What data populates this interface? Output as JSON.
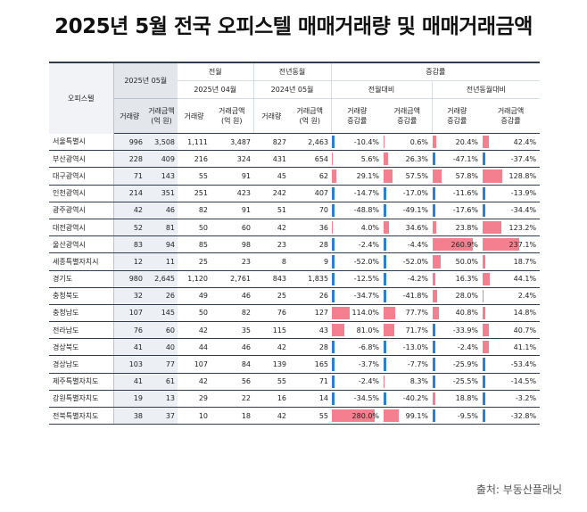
{
  "title": "2025년 5월 전국 오피스텔 매매거래량 및 매매거래금액",
  "source": "출처: 부동산플래닛",
  "header": {
    "row_label": "오피스텔",
    "current_period": "2025년 05월",
    "prev_month_group": "전월",
    "prev_month_period": "2025년 04월",
    "prev_year_group": "전년동월",
    "prev_year_period": "2024년 05월",
    "change_group": "증감률",
    "mom_label": "전월대비",
    "yoy_label": "전년동월대비",
    "col_volume": "거래량",
    "col_amount_1": "거래금액",
    "col_amount_2": "(억 원)",
    "col_vol_rate_1": "거래량",
    "col_vol_rate_2": "증감률",
    "col_amt_rate_1": "거래금액",
    "col_amt_rate_2": "증감률"
  },
  "rows": [
    {
      "region": "서울특별시",
      "vol": "996",
      "amt": "3,508",
      "pm_vol": "1,111",
      "pm_amt": "3,487",
      "py_vol": "827",
      "py_amt": "2,463",
      "mom_vol": "-10.4%",
      "mom_amt": "0.6%",
      "yoy_vol": "20.4%",
      "yoy_amt": "42.4%",
      "mom_vol_v": -10.4,
      "mom_amt_v": 0.6,
      "yoy_vol_v": 20.4,
      "yoy_amt_v": 42.4
    },
    {
      "region": "부산광역시",
      "vol": "228",
      "amt": "409",
      "pm_vol": "216",
      "pm_amt": "324",
      "py_vol": "431",
      "py_amt": "654",
      "mom_vol": "5.6%",
      "mom_amt": "26.3%",
      "yoy_vol": "-47.1%",
      "yoy_amt": "-37.4%",
      "mom_vol_v": 5.6,
      "mom_amt_v": 26.3,
      "yoy_vol_v": -47.1,
      "yoy_amt_v": -37.4
    },
    {
      "region": "대구광역시",
      "vol": "71",
      "amt": "143",
      "pm_vol": "55",
      "pm_amt": "91",
      "py_vol": "45",
      "py_amt": "62",
      "mom_vol": "29.1%",
      "mom_amt": "57.5%",
      "yoy_vol": "57.8%",
      "yoy_amt": "128.8%",
      "mom_vol_v": 29.1,
      "mom_amt_v": 57.5,
      "yoy_vol_v": 57.8,
      "yoy_amt_v": 128.8
    },
    {
      "region": "인천광역시",
      "vol": "214",
      "amt": "351",
      "pm_vol": "251",
      "pm_amt": "423",
      "py_vol": "242",
      "py_amt": "407",
      "mom_vol": "-14.7%",
      "mom_amt": "-17.0%",
      "yoy_vol": "-11.6%",
      "yoy_amt": "-13.9%",
      "mom_vol_v": -14.7,
      "mom_amt_v": -17.0,
      "yoy_vol_v": -11.6,
      "yoy_amt_v": -13.9
    },
    {
      "region": "광주광역시",
      "vol": "42",
      "amt": "46",
      "pm_vol": "82",
      "pm_amt": "91",
      "py_vol": "51",
      "py_amt": "70",
      "mom_vol": "-48.8%",
      "mom_amt": "-49.1%",
      "yoy_vol": "-17.6%",
      "yoy_amt": "-34.4%",
      "mom_vol_v": -48.8,
      "mom_amt_v": -49.1,
      "yoy_vol_v": -17.6,
      "yoy_amt_v": -34.4
    },
    {
      "region": "대전광역시",
      "vol": "52",
      "amt": "81",
      "pm_vol": "50",
      "pm_amt": "60",
      "py_vol": "42",
      "py_amt": "36",
      "mom_vol": "4.0%",
      "mom_amt": "34.6%",
      "yoy_vol": "23.8%",
      "yoy_amt": "123.2%",
      "mom_vol_v": 4.0,
      "mom_amt_v": 34.6,
      "yoy_vol_v": 23.8,
      "yoy_amt_v": 123.2
    },
    {
      "region": "울산광역시",
      "vol": "83",
      "amt": "94",
      "pm_vol": "85",
      "pm_amt": "98",
      "py_vol": "23",
      "py_amt": "28",
      "mom_vol": "-2.4%",
      "mom_amt": "-4.4%",
      "yoy_vol": "260.9%",
      "yoy_amt": "237.1%",
      "mom_vol_v": -2.4,
      "mom_amt_v": -4.4,
      "yoy_vol_v": 260.9,
      "yoy_amt_v": 237.1
    },
    {
      "region": "세종특별자치시",
      "vol": "12",
      "amt": "11",
      "pm_vol": "25",
      "pm_amt": "23",
      "py_vol": "8",
      "py_amt": "9",
      "mom_vol": "-52.0%",
      "mom_amt": "-52.0%",
      "yoy_vol": "50.0%",
      "yoy_amt": "18.7%",
      "mom_vol_v": -52.0,
      "mom_amt_v": -52.0,
      "yoy_vol_v": 50.0,
      "yoy_amt_v": 18.7
    },
    {
      "region": "경기도",
      "vol": "980",
      "amt": "2,645",
      "pm_vol": "1,120",
      "pm_amt": "2,761",
      "py_vol": "843",
      "py_amt": "1,835",
      "mom_vol": "-12.5%",
      "mom_amt": "-4.2%",
      "yoy_vol": "16.3%",
      "yoy_amt": "44.1%",
      "mom_vol_v": -12.5,
      "mom_amt_v": -4.2,
      "yoy_vol_v": 16.3,
      "yoy_amt_v": 44.1
    },
    {
      "region": "충청북도",
      "vol": "32",
      "amt": "26",
      "pm_vol": "49",
      "pm_amt": "46",
      "py_vol": "25",
      "py_amt": "26",
      "mom_vol": "-34.7%",
      "mom_amt": "-41.8%",
      "yoy_vol": "28.0%",
      "yoy_amt": "2.4%",
      "mom_vol_v": -34.7,
      "mom_amt_v": -41.8,
      "yoy_vol_v": 28.0,
      "yoy_amt_v": 2.4
    },
    {
      "region": "충청남도",
      "vol": "107",
      "amt": "145",
      "pm_vol": "50",
      "pm_amt": "82",
      "py_vol": "76",
      "py_amt": "127",
      "mom_vol": "114.0%",
      "mom_amt": "77.7%",
      "yoy_vol": "40.8%",
      "yoy_amt": "14.8%",
      "mom_vol_v": 114.0,
      "mom_amt_v": 77.7,
      "yoy_vol_v": 40.8,
      "yoy_amt_v": 14.8
    },
    {
      "region": "전라남도",
      "vol": "76",
      "amt": "60",
      "pm_vol": "42",
      "pm_amt": "35",
      "py_vol": "115",
      "py_amt": "43",
      "mom_vol": "81.0%",
      "mom_amt": "71.7%",
      "yoy_vol": "-33.9%",
      "yoy_amt": "40.7%",
      "mom_vol_v": 81.0,
      "mom_amt_v": 71.7,
      "yoy_vol_v": -33.9,
      "yoy_amt_v": 40.7
    },
    {
      "region": "경상북도",
      "vol": "41",
      "amt": "40",
      "pm_vol": "44",
      "pm_amt": "46",
      "py_vol": "42",
      "py_amt": "28",
      "mom_vol": "-6.8%",
      "mom_amt": "-13.0%",
      "yoy_vol": "-2.4%",
      "yoy_amt": "41.1%",
      "mom_vol_v": -6.8,
      "mom_amt_v": -13.0,
      "yoy_vol_v": -2.4,
      "yoy_amt_v": 41.1
    },
    {
      "region": "경상남도",
      "vol": "103",
      "amt": "77",
      "pm_vol": "107",
      "pm_amt": "84",
      "py_vol": "139",
      "py_amt": "165",
      "mom_vol": "-3.7%",
      "mom_amt": "-7.7%",
      "yoy_vol": "-25.9%",
      "yoy_amt": "-53.4%",
      "mom_vol_v": -3.7,
      "mom_amt_v": -7.7,
      "yoy_vol_v": -25.9,
      "yoy_amt_v": -53.4
    },
    {
      "region": "제주특별자치도",
      "vol": "41",
      "amt": "61",
      "pm_vol": "42",
      "pm_amt": "56",
      "py_vol": "55",
      "py_amt": "71",
      "mom_vol": "-2.4%",
      "mom_amt": "8.3%",
      "yoy_vol": "-25.5%",
      "yoy_amt": "-14.5%",
      "mom_vol_v": -2.4,
      "mom_amt_v": 8.3,
      "yoy_vol_v": -25.5,
      "yoy_amt_v": -14.5
    },
    {
      "region": "강원특별자치도",
      "vol": "19",
      "amt": "13",
      "pm_vol": "29",
      "pm_amt": "22",
      "py_vol": "16",
      "py_amt": "14",
      "mom_vol": "-34.5%",
      "mom_amt": "-40.2%",
      "yoy_vol": "18.8%",
      "yoy_amt": "-3.2%",
      "mom_vol_v": -34.5,
      "mom_amt_v": -40.2,
      "yoy_vol_v": 18.8,
      "yoy_amt_v": -3.2
    },
    {
      "region": "전북특별자치도",
      "vol": "38",
      "amt": "37",
      "pm_vol": "10",
      "pm_amt": "18",
      "py_vol": "42",
      "py_amt": "55",
      "mom_vol": "280.0%",
      "mom_amt": "99.1%",
      "yoy_vol": "-9.5%",
      "yoy_amt": "-32.8%",
      "mom_vol_v": 280.0,
      "mom_amt_v": 99.1,
      "yoy_vol_v": -9.5,
      "yoy_amt_v": -32.8
    }
  ]
}
